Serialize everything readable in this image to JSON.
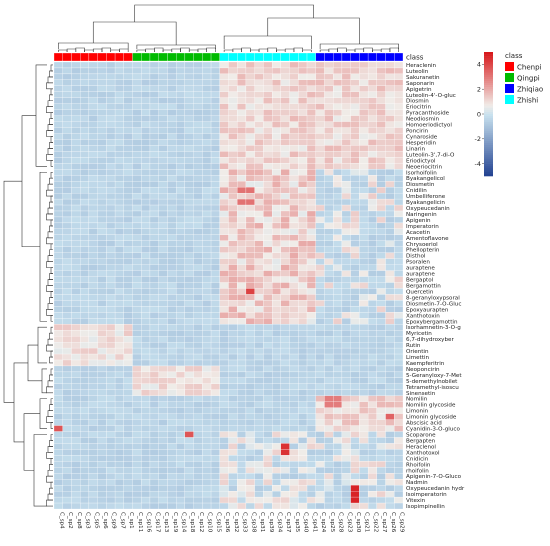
{
  "chart_data": {
    "type": "heatmap",
    "annotation_label": "class",
    "legend": {
      "title": "class",
      "entries": [
        {
          "name": "Chenpi",
          "color": "#ff0000"
        },
        {
          "name": "Qingpi",
          "color": "#00bb00"
        },
        {
          "name": "Zhiqiao",
          "color": "#0000ff"
        },
        {
          "name": "Zhishi",
          "color": "#00ffff"
        }
      ]
    },
    "colorbar": {
      "min": -5,
      "max": 5,
      "ticks": [
        4,
        2,
        0,
        -2,
        -4
      ],
      "low_color": "#1f3f8f",
      "mid_color": "#ffffff",
      "high_color": "#d7191c"
    },
    "columns": [
      {
        "name": "C_sp4",
        "cls": "Chenpi"
      },
      {
        "name": "C_sp2",
        "cls": "Chenpi"
      },
      {
        "name": "C_sp8",
        "cls": "Chenpi"
      },
      {
        "name": "C_sp3",
        "cls": "Chenpi"
      },
      {
        "name": "C_sp5",
        "cls": "Chenpi"
      },
      {
        "name": "C_sp6",
        "cls": "Chenpi"
      },
      {
        "name": "C_sp9",
        "cls": "Chenpi"
      },
      {
        "name": "C_sp7",
        "cls": "Chenpi"
      },
      {
        "name": "C_sp1",
        "cls": "Chenpi"
      },
      {
        "name": "C_sp11",
        "cls": "Qingpi"
      },
      {
        "name": "C_sp16",
        "cls": "Qingpi"
      },
      {
        "name": "C_sp17",
        "cls": "Qingpi"
      },
      {
        "name": "C_sp13",
        "cls": "Qingpi"
      },
      {
        "name": "C_sp19",
        "cls": "Qingpi"
      },
      {
        "name": "C_sp14",
        "cls": "Qingpi"
      },
      {
        "name": "C_sp18",
        "cls": "Qingpi"
      },
      {
        "name": "C_sp12",
        "cls": "Qingpi"
      },
      {
        "name": "C_sp10",
        "cls": "Qingpi"
      },
      {
        "name": "C_sp15",
        "cls": "Qingpi"
      },
      {
        "name": "C_sp36",
        "cls": "Zhishi"
      },
      {
        "name": "C_sp32",
        "cls": "Zhishi"
      },
      {
        "name": "C_sp33",
        "cls": "Zhishi"
      },
      {
        "name": "C_sp38",
        "cls": "Zhishi"
      },
      {
        "name": "C_sp31",
        "cls": "Zhishi"
      },
      {
        "name": "C_sp39",
        "cls": "Zhishi"
      },
      {
        "name": "C_sp34",
        "cls": "Zhishi"
      },
      {
        "name": "C_sp37",
        "cls": "Zhishi"
      },
      {
        "name": "C_sp35",
        "cls": "Zhishi"
      },
      {
        "name": "C_sp40",
        "cls": "Zhishi"
      },
      {
        "name": "C_sp41",
        "cls": "Zhishi"
      },
      {
        "name": "C_sp24",
        "cls": "Zhiqiao"
      },
      {
        "name": "C_sp25",
        "cls": "Zhiqiao"
      },
      {
        "name": "C_sp28",
        "cls": "Zhiqiao"
      },
      {
        "name": "C_sp23",
        "cls": "Zhiqiao"
      },
      {
        "name": "C_sp30",
        "cls": "Zhiqiao"
      },
      {
        "name": "C_sp21",
        "cls": "Zhiqiao"
      },
      {
        "name": "C_sp22",
        "cls": "Zhiqiao"
      },
      {
        "name": "C_sp27",
        "cls": "Zhiqiao"
      },
      {
        "name": "C_sp26",
        "cls": "Zhiqiao"
      },
      {
        "name": "C_sp29",
        "cls": "Zhiqiao"
      }
    ],
    "rows": [
      "Heraclenin",
      "Luteolin",
      "Sakuranetin",
      "Saponarin",
      "Apigetrin",
      "Luteolin-4'-O-gluc",
      "Diosmin",
      "Eriocitrin",
      "Pyracanthoside",
      "Neodiosmin",
      "Homoeriodictyol",
      "Poncirin",
      "Cynaroside",
      "Hesperidin",
      "Linarin",
      "Luteolin-3',7-di-O",
      "Eriodictyol",
      "Neoeriocitrin",
      "Isorhoifolin",
      "Byakangelicol",
      "Diosmetin",
      "Cnidilin",
      "Umbelliferone",
      "Byakangelicin",
      "Oxypeucedanin",
      "Naringenin",
      "Apigenin",
      "Imperatorin",
      "Acacetin",
      "Amentoflavone",
      "Chrysoeriol",
      "Phellopterin",
      "Disthol",
      "Psoralen",
      "auraptene",
      "auraptene",
      "Bergaptol",
      "Bergamottin",
      "Quercetin",
      "8-geranyloxypsoral",
      "Diosmetin-7-O-Gluc",
      "Epoxyaurapten",
      "Xanthotoxin",
      "Epoxybergamottin",
      "Isorhamnetin-3-O-g",
      "Myricetin",
      "6,7-dihydroxyber",
      "Rutin",
      "Orientin",
      "Limettin",
      "Kaempferitrin",
      "Neoponcirin",
      "5-Geranyloxy-7-Met",
      "5-demethylnobilet",
      "Tetramethyl-isoscu",
      "Sinensetin",
      "Nomilin",
      "Nomilin glycoside",
      "Limonin",
      "Limonin glycoside",
      "Abscisic acid",
      "Cyanidin-3-O-gluco",
      "Scoparone",
      "Bergapten",
      "Heraclenol",
      "Xanthotoxol",
      "Cnidicin",
      "Rhoifolin",
      "rhoifolin",
      "Apigenin-7-O-Gluco",
      "Nadmin",
      "Oxypeucedanin hydr",
      "Isoimperatorin",
      "Vitexin",
      "Isopimpinellin"
    ],
    "value_range": [
      -5,
      5
    ]
  }
}
